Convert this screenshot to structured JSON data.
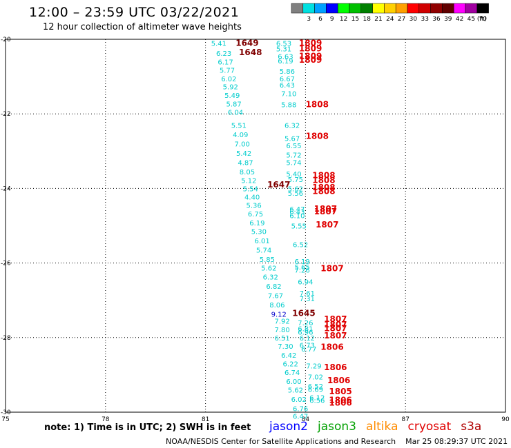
{
  "header": {
    "title": "12:00 – 23:59 UTC 03/22/2021",
    "subtitle": "12 hour collection of altimeter wave heights"
  },
  "legend": {
    "unit": "(ft)",
    "items": [
      {
        "label": "",
        "color": "#808080"
      },
      {
        "label": "3",
        "color": "#00e0e0"
      },
      {
        "label": "6",
        "color": "#00a0ff"
      },
      {
        "label": "9",
        "color": "#0000ff"
      },
      {
        "label": "12",
        "color": "#00ff00"
      },
      {
        "label": "15",
        "color": "#00c000"
      },
      {
        "label": "18",
        "color": "#008000"
      },
      {
        "label": "21",
        "color": "#ffff00"
      },
      {
        "label": "24",
        "color": "#ffd000"
      },
      {
        "label": "27",
        "color": "#ffa000"
      },
      {
        "label": "30",
        "color": "#ff0000"
      },
      {
        "label": "33",
        "color": "#d00000"
      },
      {
        "label": "36",
        "color": "#900000"
      },
      {
        "label": "39",
        "color": "#600000"
      },
      {
        "label": "42",
        "color": "#ff00ff"
      },
      {
        "label": "45",
        "color": "#a000a0"
      },
      {
        "label": "70",
        "color": "#000000"
      }
    ]
  },
  "footer": {
    "note": "note: 1) Time is in UTC; 2) SWH is in feet",
    "satellites": [
      {
        "name": "jason2",
        "color": "#0000ff"
      },
      {
        "name": "jason3",
        "color": "#00a000"
      },
      {
        "name": "altika",
        "color": "#ff8c00"
      },
      {
        "name": "cryosat",
        "color": "#e00000"
      },
      {
        "name": "s3a",
        "color": "#b00000"
      }
    ],
    "credit": "NOAA/NESDIS Center for Satellite Applications and Research",
    "timestamp": "Mar 25 08:29:37 UTC 2021"
  },
  "chart_data": {
    "type": "scatter",
    "xlim": [
      75,
      90
    ],
    "ylim": [
      -30,
      -20
    ],
    "x_ticks": [
      "75",
      "78",
      "81",
      "84",
      "87",
      "90"
    ],
    "y_ticks": [
      "-20",
      "-22",
      "-24",
      "-26",
      "-28",
      "-30"
    ],
    "grid": true,
    "colors": {
      "cyan": "#00cccc",
      "lightblue": "#00a8e0",
      "blue": "#0000cc",
      "red": "#e00000",
      "darkred": "#800000"
    },
    "points": [
      {
        "x": 81.4,
        "y": -20.1,
        "label": "5.41",
        "color": "cyan"
      },
      {
        "x": 81.55,
        "y": -20.37,
        "label": "6.23",
        "color": "cyan"
      },
      {
        "x": 81.6,
        "y": -20.6,
        "label": "6.17",
        "color": "cyan"
      },
      {
        "x": 81.65,
        "y": -20.82,
        "label": "5.77",
        "color": "cyan"
      },
      {
        "x": 81.7,
        "y": -21.05,
        "label": "6.02",
        "color": "cyan"
      },
      {
        "x": 81.75,
        "y": -21.27,
        "label": "5.92",
        "color": "cyan"
      },
      {
        "x": 81.8,
        "y": -21.5,
        "label": "5.49",
        "color": "cyan"
      },
      {
        "x": 81.85,
        "y": -21.73,
        "label": "5.87",
        "color": "cyan"
      },
      {
        "x": 81.9,
        "y": -21.95,
        "label": "6.04",
        "color": "cyan"
      },
      {
        "x": 82.0,
        "y": -22.3,
        "label": "5.51",
        "color": "cyan"
      },
      {
        "x": 82.05,
        "y": -22.55,
        "label": "4.09",
        "color": "cyan"
      },
      {
        "x": 82.1,
        "y": -22.8,
        "label": "7.00",
        "color": "cyan"
      },
      {
        "x": 82.15,
        "y": -23.05,
        "label": "5.42",
        "color": "cyan"
      },
      {
        "x": 82.2,
        "y": -23.3,
        "label": "4.87",
        "color": "cyan"
      },
      {
        "x": 82.25,
        "y": -23.55,
        "label": "8.05",
        "color": "cyan"
      },
      {
        "x": 82.3,
        "y": -23.78,
        "label": "5.12",
        "color": "cyan"
      },
      {
        "x": 82.35,
        "y": -24.0,
        "label": "5.54",
        "color": "cyan"
      },
      {
        "x": 82.4,
        "y": -24.22,
        "label": "4.40",
        "color": "cyan"
      },
      {
        "x": 82.45,
        "y": -24.45,
        "label": "5.36",
        "color": "cyan"
      },
      {
        "x": 82.5,
        "y": -24.68,
        "label": "6.75",
        "color": "cyan"
      },
      {
        "x": 82.55,
        "y": -24.92,
        "label": "6.19",
        "color": "cyan"
      },
      {
        "x": 82.6,
        "y": -25.15,
        "label": "5.30",
        "color": "cyan"
      },
      {
        "x": 82.7,
        "y": -25.4,
        "label": "6.01",
        "color": "cyan"
      },
      {
        "x": 82.75,
        "y": -25.65,
        "label": "5.74",
        "color": "cyan"
      },
      {
        "x": 82.85,
        "y": -25.9,
        "label": "5.85",
        "color": "cyan"
      },
      {
        "x": 82.9,
        "y": -26.13,
        "label": "5.62",
        "color": "cyan"
      },
      {
        "x": 82.95,
        "y": -26.37,
        "label": "6.32",
        "color": "cyan"
      },
      {
        "x": 83.05,
        "y": -26.62,
        "label": "6.82",
        "color": "cyan"
      },
      {
        "x": 83.1,
        "y": -26.87,
        "label": "7.67",
        "color": "cyan"
      },
      {
        "x": 83.15,
        "y": -27.12,
        "label": "8.06",
        "color": "cyan"
      },
      {
        "x": 83.2,
        "y": -27.37,
        "label": "9.12",
        "color": "blue"
      },
      {
        "x": 83.3,
        "y": -27.55,
        "label": "7.92",
        "color": "cyan"
      },
      {
        "x": 83.3,
        "y": -27.78,
        "label": "7.80",
        "color": "cyan"
      },
      {
        "x": 83.3,
        "y": -28.0,
        "label": "6.51",
        "color": "cyan"
      },
      {
        "x": 83.4,
        "y": -28.23,
        "label": "7.30",
        "color": "cyan"
      },
      {
        "x": 83.5,
        "y": -28.47,
        "label": "6.42",
        "color": "cyan"
      },
      {
        "x": 83.55,
        "y": -28.7,
        "label": "6.22",
        "color": "cyan"
      },
      {
        "x": 83.6,
        "y": -28.93,
        "label": "6.74",
        "color": "cyan"
      },
      {
        "x": 83.65,
        "y": -29.17,
        "label": "6.00",
        "color": "cyan"
      },
      {
        "x": 83.7,
        "y": -29.4,
        "label": "5.62",
        "color": "cyan"
      },
      {
        "x": 83.8,
        "y": -29.65,
        "label": "6.02",
        "color": "cyan"
      },
      {
        "x": 83.85,
        "y": -29.9,
        "label": "6.76",
        "color": "cyan"
      },
      {
        "x": 83.85,
        "y": -30.1,
        "label": "6.47",
        "color": "cyan"
      },
      {
        "x": 83.35,
        "y": -20.1,
        "label": "6.53",
        "color": "cyan"
      },
      {
        "x": 83.35,
        "y": -20.25,
        "label": "5.31",
        "color": "cyan"
      },
      {
        "x": 83.4,
        "y": -20.45,
        "label": "6.63",
        "color": "cyan"
      },
      {
        "x": 83.4,
        "y": -20.57,
        "label": "6.19",
        "color": "cyan"
      },
      {
        "x": 83.45,
        "y": -20.85,
        "label": "5.86",
        "color": "cyan"
      },
      {
        "x": 83.45,
        "y": -21.05,
        "label": "6.67",
        "color": "cyan"
      },
      {
        "x": 83.45,
        "y": -21.22,
        "label": "6.43",
        "color": "cyan"
      },
      {
        "x": 83.5,
        "y": -21.45,
        "label": "7.10",
        "color": "cyan"
      },
      {
        "x": 83.5,
        "y": -21.75,
        "label": "5.88",
        "color": "cyan"
      },
      {
        "x": 83.6,
        "y": -22.3,
        "label": "6.32",
        "color": "cyan"
      },
      {
        "x": 83.6,
        "y": -22.65,
        "label": "5.67",
        "color": "cyan"
      },
      {
        "x": 83.65,
        "y": -22.85,
        "label": "6.55",
        "color": "cyan"
      },
      {
        "x": 83.65,
        "y": -23.1,
        "label": "5.72",
        "color": "cyan"
      },
      {
        "x": 83.65,
        "y": -23.3,
        "label": "5.74",
        "color": "cyan"
      },
      {
        "x": 83.65,
        "y": -23.6,
        "label": "5.40",
        "color": "cyan"
      },
      {
        "x": 83.7,
        "y": -23.75,
        "label": "5.75",
        "color": "cyan"
      },
      {
        "x": 83.7,
        "y": -24.0,
        "label": "5.62",
        "color": "cyan"
      },
      {
        "x": 83.7,
        "y": -24.12,
        "label": "5.56",
        "color": "cyan"
      },
      {
        "x": 83.75,
        "y": -24.55,
        "label": "6.47",
        "color": "cyan"
      },
      {
        "x": 83.75,
        "y": -24.62,
        "label": "6.43",
        "color": "cyan"
      },
      {
        "x": 83.75,
        "y": -24.72,
        "label": "6.10",
        "color": "cyan"
      },
      {
        "x": 83.8,
        "y": -25.0,
        "label": "5.55",
        "color": "cyan"
      },
      {
        "x": 83.85,
        "y": -25.5,
        "label": "6.52",
        "color": "cyan"
      },
      {
        "x": 83.9,
        "y": -25.95,
        "label": "6.19",
        "color": "cyan"
      },
      {
        "x": 83.9,
        "y": -26.1,
        "label": "5.65",
        "color": "cyan"
      },
      {
        "x": 83.9,
        "y": -26.18,
        "label": "7.26",
        "color": "cyan"
      },
      {
        "x": 84.0,
        "y": -26.5,
        "label": "6.94",
        "color": "cyan"
      },
      {
        "x": 84.05,
        "y": -26.8,
        "label": "7.61",
        "color": "cyan"
      },
      {
        "x": 84.05,
        "y": -26.95,
        "label": "7.31",
        "color": "cyan"
      },
      {
        "x": 84.0,
        "y": -27.6,
        "label": "7.26",
        "color": "cyan"
      },
      {
        "x": 84.0,
        "y": -27.75,
        "label": "6.81",
        "color": "cyan"
      },
      {
        "x": 84.0,
        "y": -27.85,
        "label": "6.96",
        "color": "cyan"
      },
      {
        "x": 84.05,
        "y": -28.0,
        "label": "6.12",
        "color": "cyan"
      },
      {
        "x": 84.05,
        "y": -28.2,
        "label": "6.73",
        "color": "cyan"
      },
      {
        "x": 84.1,
        "y": -28.3,
        "label": "6.77",
        "color": "cyan"
      },
      {
        "x": 84.25,
        "y": -28.75,
        "label": "7.29",
        "color": "cyan"
      },
      {
        "x": 84.3,
        "y": -29.05,
        "label": "7.02",
        "color": "cyan"
      },
      {
        "x": 84.3,
        "y": -29.3,
        "label": "6.52",
        "color": "cyan"
      },
      {
        "x": 84.3,
        "y": -29.38,
        "label": "6.69",
        "color": "cyan"
      },
      {
        "x": 84.35,
        "y": -29.6,
        "label": "6.12",
        "color": "cyan"
      },
      {
        "x": 84.35,
        "y": -29.68,
        "label": "6.56",
        "color": "cyan"
      },
      {
        "x": 82.25,
        "y": -20.1,
        "label": "1649",
        "color": "darkred"
      },
      {
        "x": 82.35,
        "y": -20.35,
        "label": "1648",
        "color": "darkred"
      },
      {
        "x": 83.2,
        "y": -23.9,
        "label": "1647",
        "color": "darkred"
      },
      {
        "x": 83.95,
        "y": -27.35,
        "label": "1645",
        "color": "darkred"
      },
      {
        "x": 84.15,
        "y": -20.1,
        "label": "1809",
        "color": "red"
      },
      {
        "x": 84.15,
        "y": -20.25,
        "label": "1809",
        "color": "red"
      },
      {
        "x": 84.15,
        "y": -20.45,
        "label": "1809",
        "color": "red"
      },
      {
        "x": 84.15,
        "y": -20.55,
        "label": "1809",
        "color": "red"
      },
      {
        "x": 84.35,
        "y": -21.75,
        "label": "1808",
        "color": "red"
      },
      {
        "x": 84.35,
        "y": -22.6,
        "label": "1808",
        "color": "red"
      },
      {
        "x": 84.55,
        "y": -23.65,
        "label": "1808",
        "color": "red"
      },
      {
        "x": 84.55,
        "y": -23.78,
        "label": "1808",
        "color": "red"
      },
      {
        "x": 84.55,
        "y": -23.97,
        "label": "1808",
        "color": "red"
      },
      {
        "x": 84.55,
        "y": -24.08,
        "label": "1808",
        "color": "red"
      },
      {
        "x": 84.6,
        "y": -24.55,
        "label": "1807",
        "color": "red"
      },
      {
        "x": 84.6,
        "y": -24.62,
        "label": "1807",
        "color": "red"
      },
      {
        "x": 84.65,
        "y": -24.97,
        "label": "1807",
        "color": "red"
      },
      {
        "x": 84.8,
        "y": -26.15,
        "label": "1807",
        "color": "red"
      },
      {
        "x": 84.9,
        "y": -27.5,
        "label": "1807",
        "color": "red"
      },
      {
        "x": 84.9,
        "y": -27.65,
        "label": "1807",
        "color": "red"
      },
      {
        "x": 84.9,
        "y": -27.75,
        "label": "1807",
        "color": "red"
      },
      {
        "x": 84.9,
        "y": -27.95,
        "label": "1807",
        "color": "red"
      },
      {
        "x": 84.8,
        "y": -28.25,
        "label": "1806",
        "color": "red"
      },
      {
        "x": 84.9,
        "y": -28.8,
        "label": "1806",
        "color": "red"
      },
      {
        "x": 85.0,
        "y": -29.15,
        "label": "1806",
        "color": "red"
      },
      {
        "x": 85.05,
        "y": -29.45,
        "label": "1805",
        "color": "red"
      },
      {
        "x": 85.05,
        "y": -29.68,
        "label": "1806",
        "color": "red"
      },
      {
        "x": 85.05,
        "y": -29.75,
        "label": "1806",
        "color": "red"
      }
    ]
  }
}
